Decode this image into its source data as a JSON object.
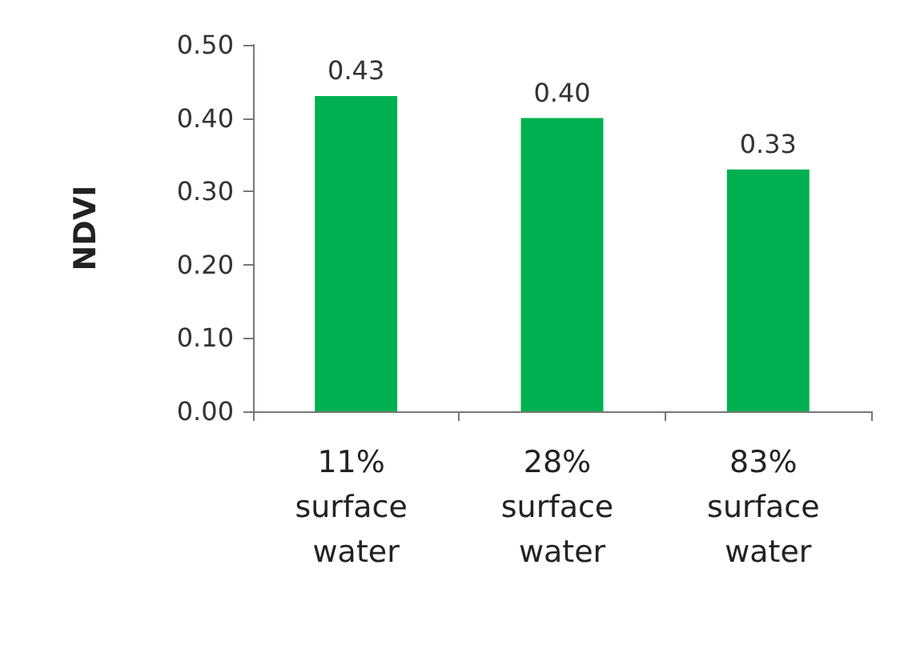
{
  "chart_data": {
    "type": "bar",
    "ylabel": "NDVI",
    "categories": [
      "11% surface water",
      "28% surface water",
      "83% surface water"
    ],
    "values": [
      0.43,
      0.4,
      0.33
    ],
    "color": "#00b050",
    "value_labels": [
      "0.43",
      "0.40",
      "0.33"
    ],
    "ylim": [
      0,
      0.5
    ],
    "yticks": [
      {
        "value": 0,
        "label": "0.00"
      },
      {
        "value": 0.1,
        "label": "0.10"
      },
      {
        "value": 0.2,
        "label": "0.20"
      },
      {
        "value": 0.3,
        "label": "0.30"
      },
      {
        "value": 0.4,
        "label": "0.40"
      },
      {
        "value": 0.5,
        "label": "0.50"
      }
    ],
    "grid": false
  }
}
